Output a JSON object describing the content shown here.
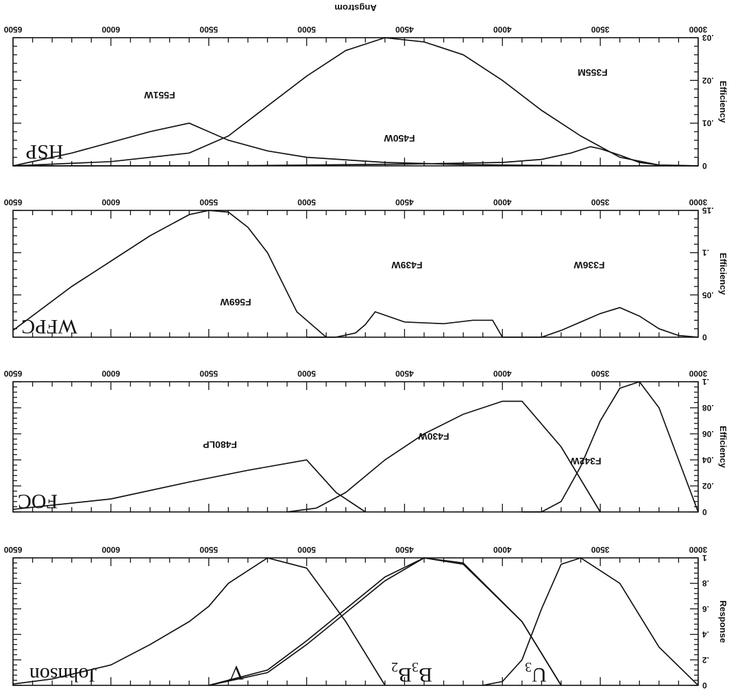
{
  "chart_data": [
    {
      "type": "line",
      "panel": "HSP",
      "xlabel": "Angstrom",
      "ylabel": "Efficiency",
      "xlim": [
        3000,
        6500
      ],
      "ylim": [
        0,
        0.3
      ],
      "x_ticks": [
        "3000",
        "3500",
        "4000",
        "4500",
        "5000",
        "5500",
        "6000",
        "6500"
      ],
      "y_ticks": [
        "0",
        ".01",
        ".02",
        ".03"
      ],
      "series": [
        {
          "name": "F355M",
          "x": [
            3000,
            3100,
            3200,
            3300,
            3400,
            3500,
            3550,
            3650,
            3800,
            4000,
            4500,
            5000,
            5200,
            5600,
            6000,
            6500
          ],
          "y": [
            0.0,
            0.001,
            0.002,
            0.008,
            0.025,
            0.04,
            0.045,
            0.03,
            0.015,
            0.008,
            0.004,
            0.002,
            0.001,
            0.0,
            0.0,
            0.0
          ]
        },
        {
          "name": "F450W",
          "x": [
            3000,
            3200,
            3400,
            3600,
            3800,
            4000,
            4200,
            4400,
            4600,
            4800,
            5000,
            5200,
            5400,
            5600,
            6000,
            6500
          ],
          "y": [
            0.0,
            0.002,
            0.02,
            0.07,
            0.13,
            0.2,
            0.26,
            0.29,
            0.3,
            0.27,
            0.21,
            0.14,
            0.07,
            0.03,
            0.01,
            0.0
          ]
        },
        {
          "name": "F551W",
          "x": [
            3000,
            3400,
            3800,
            4200,
            4600,
            5000,
            5200,
            5400,
            5500,
            5600,
            5800,
            6200,
            6500
          ],
          "y": [
            0.0,
            0.0,
            0.001,
            0.003,
            0.008,
            0.02,
            0.035,
            0.06,
            0.08,
            0.1,
            0.08,
            0.03,
            0.0
          ]
        }
      ]
    },
    {
      "type": "line",
      "panel": "WFPC",
      "xlabel": "",
      "ylabel": "Efficiency",
      "xlim": [
        3000,
        6500
      ],
      "ylim": [
        0,
        0.15
      ],
      "x_ticks": [
        "3000",
        "3500",
        "4000",
        "4500",
        "5000",
        "5500",
        "6000",
        "6500"
      ],
      "y_ticks": [
        "0",
        ".05",
        ".1",
        ".15"
      ],
      "series": [
        {
          "name": "F336W",
          "x": [
            3000,
            3100,
            3200,
            3300,
            3400,
            3500,
            3600,
            3700,
            3800,
            3900,
            4000
          ],
          "y": [
            0.0,
            0.002,
            0.01,
            0.025,
            0.035,
            0.028,
            0.018,
            0.008,
            0.0,
            0.0,
            0.0
          ]
        },
        {
          "name": "F439W",
          "x": [
            4000,
            4050,
            4150,
            4300,
            4500,
            4650,
            4700,
            4750,
            4850,
            4950,
            5000
          ],
          "y": [
            0.0,
            0.02,
            0.02,
            0.016,
            0.018,
            0.03,
            0.015,
            0.005,
            0.0,
            0.0,
            0.0
          ]
        },
        {
          "name": "F569W",
          "x": [
            4900,
            5050,
            5200,
            5300,
            5400,
            5500,
            5600,
            5800,
            6000,
            6200,
            6500
          ],
          "y": [
            0.0,
            0.03,
            0.1,
            0.13,
            0.148,
            0.15,
            0.145,
            0.12,
            0.09,
            0.06,
            0.008
          ]
        }
      ]
    },
    {
      "type": "line",
      "panel": "FOC",
      "xlabel": "",
      "ylabel": "Efficiency",
      "xlim": [
        3000,
        6500
      ],
      "ylim": [
        0,
        0.1
      ],
      "x_ticks": [
        "3000",
        "3500",
        "4000",
        "4500",
        "5000",
        "5500",
        "6000",
        "6500"
      ],
      "y_ticks": [
        "0",
        ".02",
        ".04",
        ".06",
        ".08",
        ".1"
      ],
      "series": [
        {
          "name": "F342W",
          "x": [
            3000,
            3100,
            3200,
            3300,
            3400,
            3500,
            3600,
            3700,
            3800,
            3900
          ],
          "y": [
            0.0,
            0.04,
            0.08,
            0.1,
            0.095,
            0.07,
            0.035,
            0.008,
            0.0,
            0.0
          ]
        },
        {
          "name": "F430W",
          "x": [
            3500,
            3700,
            3900,
            4000,
            4200,
            4400,
            4600,
            4800,
            4950,
            5100
          ],
          "y": [
            0.0,
            0.05,
            0.085,
            0.085,
            0.075,
            0.06,
            0.04,
            0.015,
            0.003,
            0.0
          ]
        },
        {
          "name": "F480LP",
          "x": [
            4700,
            4850,
            5000,
            5300,
            5600,
            6000,
            6500
          ],
          "y": [
            0.0,
            0.015,
            0.04,
            0.032,
            0.023,
            0.01,
            0.002
          ]
        }
      ]
    },
    {
      "type": "line",
      "panel": "Johnson",
      "xlabel": "",
      "ylabel": "Response",
      "xlim": [
        3000,
        6500
      ],
      "ylim": [
        0,
        1
      ],
      "x_ticks": [
        "3000",
        "3500",
        "4000",
        "4500",
        "5000",
        "5500",
        "6000",
        "6500"
      ],
      "y_ticks": [
        "0",
        ".2",
        ".4",
        ".6",
        ".8",
        "1"
      ],
      "series": [
        {
          "name": "U3",
          "x": [
            3000,
            3200,
            3400,
            3600,
            3700,
            3800,
            3900,
            4000,
            4100
          ],
          "y": [
            0.0,
            0.3,
            0.8,
            1.0,
            0.95,
            0.6,
            0.2,
            0.03,
            0.0
          ]
        },
        {
          "name": "B3",
          "x": [
            3700,
            3900,
            4200,
            4400,
            4600,
            4800,
            5000,
            5200,
            5500
          ],
          "y": [
            0.0,
            0.5,
            0.96,
            1.0,
            0.85,
            0.6,
            0.35,
            0.12,
            0.0
          ]
        },
        {
          "name": "B2",
          "x": [
            3700,
            3900,
            4200,
            4400,
            4600,
            4800,
            5000,
            5200,
            5500
          ],
          "y": [
            0.0,
            0.5,
            0.95,
            1.0,
            0.82,
            0.57,
            0.32,
            0.1,
            0.0
          ]
        },
        {
          "name": "V",
          "x": [
            4600,
            4800,
            5000,
            5200,
            5400,
            5500,
            5600,
            5800,
            6000,
            6300,
            6500
          ],
          "y": [
            0.0,
            0.5,
            0.92,
            1.0,
            0.8,
            0.62,
            0.5,
            0.32,
            0.16,
            0.05,
            0.01
          ]
        }
      ]
    }
  ],
  "panel_labels": {
    "HSP": "HSP",
    "WFPC": "WFPC",
    "FOC": "FOC",
    "Johnson": "Johnson",
    "V": "V",
    "B3B2": "B",
    "B3B2_sub1": "3",
    "B3B2_second": "B",
    "B3B2_sub2": "2",
    "U3": "U",
    "U3_sub": "3"
  }
}
